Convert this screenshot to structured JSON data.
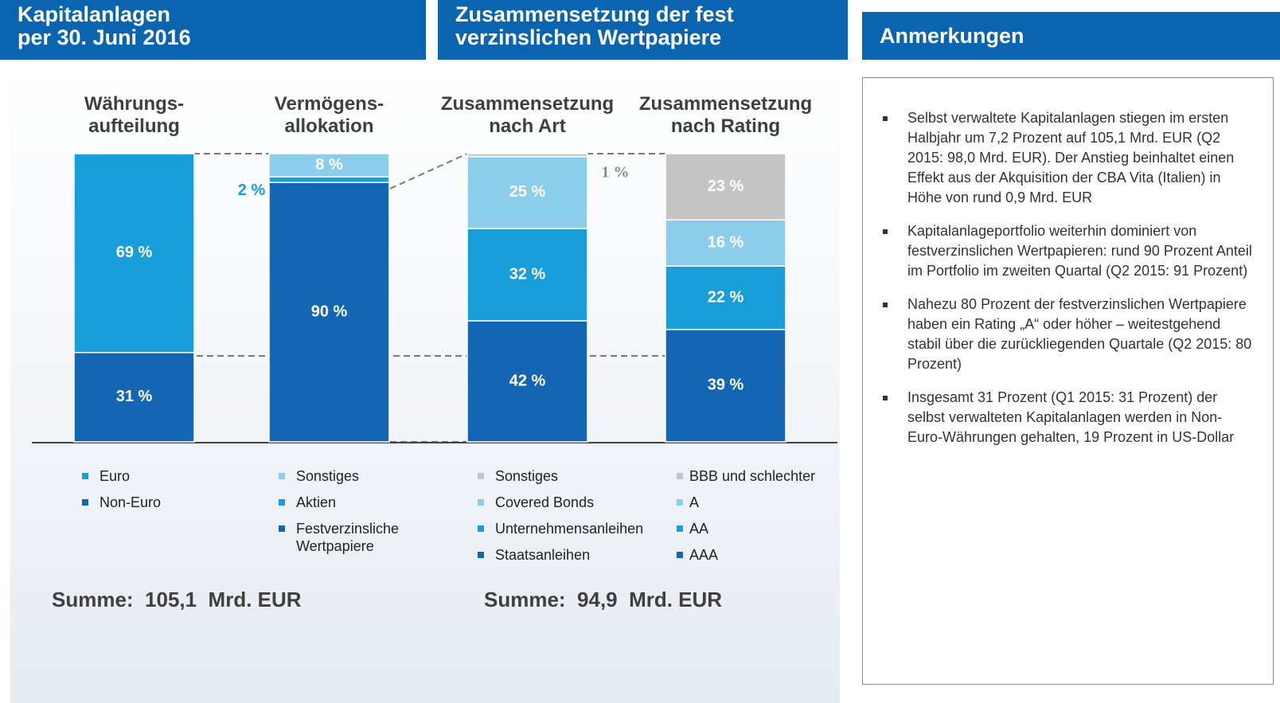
{
  "headers": [
    [
      "Kapitalanlagen",
      "per 30. Juni 2016"
    ],
    [
      "Zusammensetzung  der fest",
      "verzinslichen Wertpapiere"
    ],
    [
      "Anmerkungen"
    ]
  ],
  "chart_data": [
    {
      "type": "stacked_bar",
      "title": [
        "Währungs-",
        "aufteilung"
      ],
      "series": [
        {
          "name": "Euro",
          "color": "#1a9ed9",
          "values": [
            69
          ],
          "value_labels": [
            "69 %"
          ]
        },
        {
          "name": "Non-Euro",
          "color": "#1466b2",
          "values": [
            31
          ],
          "value_labels": [
            "31 %"
          ]
        }
      ]
    },
    {
      "type": "stacked_bar",
      "title": [
        "Vermögens-",
        "allokation"
      ],
      "series": [
        {
          "name": "Sonstiges",
          "color": "#8dcdec",
          "values": [
            8
          ],
          "value_labels": [
            "8 %"
          ]
        },
        {
          "name": "Aktien",
          "color": "#1a9ed9",
          "values": [
            2
          ],
          "value_labels": [
            "2 %"
          ]
        },
        {
          "name": "Festverzinsliche Wertpapiere",
          "color": "#1466b2",
          "values": [
            90
          ],
          "value_labels": [
            "90 %"
          ]
        }
      ]
    },
    {
      "type": "stacked_bar",
      "title": [
        "Zusammensetzung",
        "nach Art"
      ],
      "series": [
        {
          "name": "Sonstiges",
          "color": "#c4c4c4",
          "values": [
            1
          ],
          "value_labels": [
            "1 %"
          ]
        },
        {
          "name": "Covered Bonds",
          "color": "#8dcdec",
          "values": [
            25
          ],
          "value_labels": [
            "25 %"
          ]
        },
        {
          "name": "Unternehmensanleihen",
          "color": "#1a9ed9",
          "values": [
            32
          ],
          "value_labels": [
            "32 %"
          ]
        },
        {
          "name": "Staatsanleihen",
          "color": "#1466b2",
          "values": [
            42
          ],
          "value_labels": [
            "42 %"
          ]
        }
      ]
    },
    {
      "type": "stacked_bar",
      "title": [
        "Zusammensetzung",
        "nach Rating"
      ],
      "series": [
        {
          "name": "BBB und schlechter",
          "color": "#c4c4c4",
          "values": [
            23
          ],
          "value_labels": [
            "23 %"
          ]
        },
        {
          "name": "A",
          "color": "#8dcdec",
          "values": [
            16
          ],
          "value_labels": [
            "16 %"
          ]
        },
        {
          "name": "AA",
          "color": "#1a9ed9",
          "values": [
            22
          ],
          "value_labels": [
            "22 %"
          ]
        },
        {
          "name": "AAA",
          "color": "#1466b2",
          "values": [
            39
          ],
          "value_labels": [
            "39 %"
          ]
        }
      ]
    }
  ],
  "totals": [
    "Summe:  105,1  Mrd. EUR",
    "Summe:  94,9  Mrd. EUR"
  ],
  "notes": [
    "Selbst verwaltete Kapitalanlagen stiegen im ersten Halbjahr um 7,2 Prozent auf 105,1 Mrd. EUR (Q2 2015: 98,0 Mrd. EUR). Der Anstieg beinhaltet einen Effekt aus der Akquisition der CBA Vita (Italien) in Höhe von rund 0,9 Mrd. EUR",
    "Kapitalanlageportfolio weiterhin dominiert von festverzinslichen Wertpapieren: rund 90 Prozent Anteil im Portfolio im zweiten Quartal (Q2 2015: 91 Prozent)",
    "Nahezu 80 Prozent der festverzinslichen Wertpapiere haben ein Rating „A“ oder höher – weitestgehend stabil über die zurückliegenden Quartale (Q2 2015: 80 Prozent)",
    "Insgesamt 31 Prozent (Q1 2015: 31 Prozent) der selbst verwalteten Kapitalanlagen werden in Non-Euro-Währungen gehalten, 19 Prozent in US-Dollar"
  ]
}
